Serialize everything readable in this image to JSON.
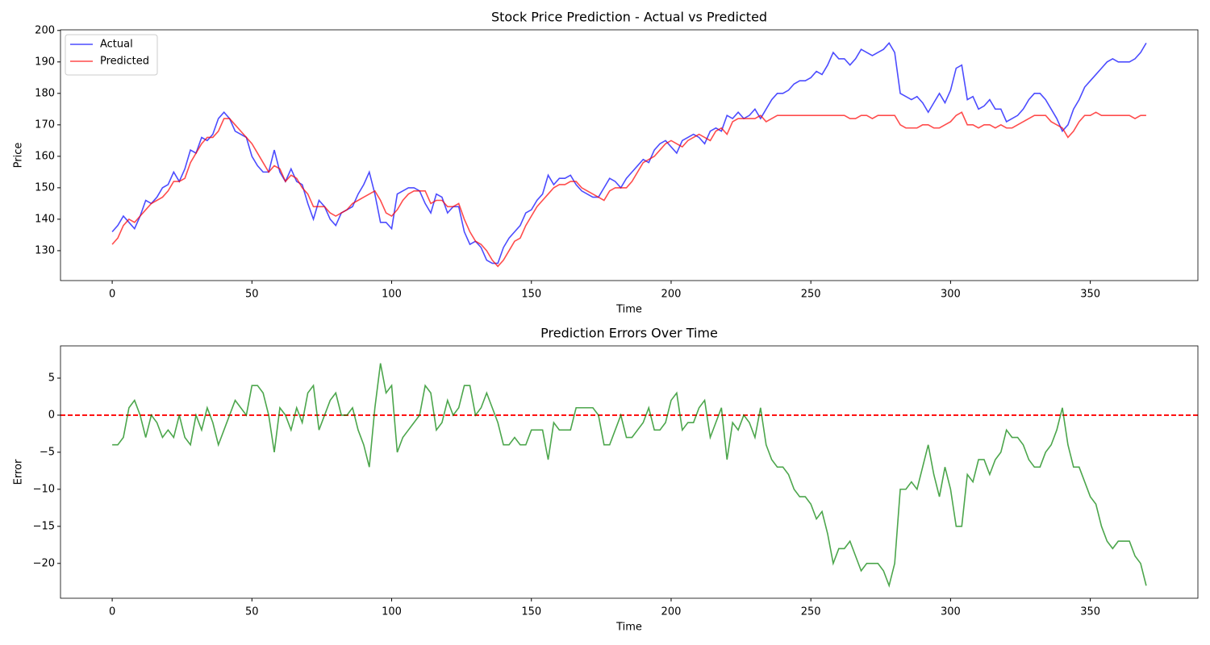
{
  "chart_data": [
    {
      "type": "line",
      "title": "Stock Price Prediction - Actual vs Predicted",
      "xlabel": "Time",
      "ylabel": "Price",
      "x": [
        0,
        2,
        4,
        6,
        8,
        10,
        12,
        14,
        16,
        18,
        20,
        22,
        24,
        26,
        28,
        30,
        32,
        34,
        36,
        38,
        40,
        42,
        44,
        46,
        48,
        50,
        52,
        54,
        56,
        58,
        60,
        62,
        64,
        66,
        68,
        70,
        72,
        74,
        76,
        78,
        80,
        82,
        84,
        86,
        88,
        90,
        92,
        94,
        96,
        98,
        100,
        102,
        104,
        106,
        108,
        110,
        112,
        114,
        116,
        118,
        120,
        122,
        124,
        126,
        128,
        130,
        132,
        134,
        136,
        138,
        140,
        142,
        144,
        146,
        148,
        150,
        152,
        154,
        156,
        158,
        160,
        162,
        164,
        166,
        168,
        170,
        172,
        174,
        176,
        178,
        180,
        182,
        184,
        186,
        188,
        190,
        192,
        194,
        196,
        198,
        200,
        202,
        204,
        206,
        208,
        210,
        212,
        214,
        216,
        218,
        220,
        222,
        224,
        226,
        228,
        230,
        232,
        234,
        236,
        238,
        240,
        242,
        244,
        246,
        248,
        250,
        252,
        254,
        256,
        258,
        260,
        262,
        264,
        266,
        268,
        270,
        272,
        274,
        276,
        278,
        280,
        282,
        284,
        286,
        288,
        290,
        292,
        294,
        296,
        298,
        300,
        302,
        304,
        306,
        308,
        310,
        312,
        314,
        316,
        318,
        320,
        322,
        324,
        326,
        328,
        330,
        332,
        334,
        336,
        338,
        340,
        342,
        344,
        346,
        348,
        350,
        352,
        354,
        356,
        358,
        360,
        362,
        364,
        366,
        368,
        370
      ],
      "series": [
        {
          "name": "Actual",
          "color": "#0000ff",
          "opacity": 0.7,
          "values": [
            136,
            138,
            141,
            139,
            137,
            141,
            146,
            145,
            147,
            150,
            151,
            155,
            152,
            156,
            162,
            161,
            166,
            165,
            167,
            172,
            174,
            172,
            168,
            167,
            166,
            160,
            157,
            155,
            155,
            162,
            155,
            152,
            156,
            152,
            151,
            145,
            140,
            146,
            144,
            140,
            138,
            142,
            143,
            144,
            148,
            151,
            155,
            148,
            139,
            139,
            137,
            148,
            149,
            150,
            150,
            149,
            145,
            142,
            148,
            147,
            142,
            144,
            144,
            136,
            132,
            133,
            131,
            127,
            126,
            126,
            131,
            134,
            136,
            138,
            142,
            143,
            146,
            148,
            154,
            151,
            153,
            153,
            154,
            151,
            149,
            148,
            147,
            147,
            150,
            153,
            152,
            150,
            153,
            155,
            157,
            159,
            158,
            162,
            164,
            165,
            163,
            161,
            165,
            166,
            167,
            166,
            164,
            168,
            169,
            168,
            173,
            172,
            174,
            172,
            173,
            175,
            172,
            175,
            178,
            180,
            180,
            181,
            183,
            184,
            184,
            185,
            187,
            186,
            189,
            193,
            191,
            191,
            189,
            191,
            194,
            193,
            192,
            193,
            194,
            196,
            193,
            180,
            179,
            178,
            179,
            177,
            174,
            177,
            180,
            177,
            181,
            188,
            189,
            178,
            179,
            175,
            176,
            178,
            175,
            175,
            171,
            172,
            173,
            175,
            178,
            180,
            180,
            178,
            175,
            172,
            168,
            170,
            175,
            178,
            182,
            184,
            186,
            188,
            190,
            191,
            190,
            190,
            190,
            191,
            193,
            196
          ]
        },
        {
          "name": "Predicted",
          "color": "#ff0000",
          "opacity": 0.7,
          "values": [
            132,
            134,
            138,
            140,
            139,
            141,
            143,
            145,
            146,
            147,
            149,
            152,
            152,
            153,
            158,
            161,
            164,
            166,
            166,
            168,
            172,
            172,
            170,
            168,
            166,
            164,
            161,
            158,
            155,
            157,
            156,
            152,
            154,
            153,
            150,
            148,
            144,
            144,
            144,
            142,
            141,
            142,
            143,
            145,
            146,
            147,
            148,
            149,
            146,
            142,
            141,
            143,
            146,
            148,
            149,
            149,
            149,
            145,
            146,
            146,
            144,
            144,
            145,
            140,
            136,
            133,
            132,
            130,
            127,
            125,
            127,
            130,
            133,
            134,
            138,
            141,
            144,
            146,
            148,
            150,
            151,
            151,
            152,
            152,
            150,
            149,
            148,
            147,
            146,
            149,
            150,
            150,
            150,
            152,
            155,
            158,
            159,
            160,
            162,
            164,
            165,
            164,
            163,
            165,
            166,
            167,
            166,
            165,
            168,
            169,
            167,
            171,
            172,
            172,
            172,
            172,
            173,
            171,
            172,
            173,
            173,
            173,
            173,
            173,
            173,
            173,
            173,
            173,
            173,
            173,
            173,
            173,
            172,
            172,
            173,
            173,
            172,
            173,
            173,
            173,
            173,
            170,
            169,
            169,
            169,
            170,
            170,
            169,
            169,
            170,
            171,
            173,
            174,
            170,
            170,
            169,
            170,
            170,
            169,
            170,
            169,
            169,
            170,
            171,
            172,
            173,
            173,
            173,
            171,
            170,
            169,
            166,
            168,
            171,
            173,
            173,
            174,
            173,
            173,
            173,
            173,
            173,
            173,
            172,
            173,
            173
          ]
        }
      ],
      "xlim": [
        -18.5,
        388.5
      ],
      "xticks": [
        0,
        50,
        100,
        150,
        200,
        250,
        300,
        350
      ],
      "ylim": [
        120.5,
        200.2
      ],
      "yticks": [
        130,
        140,
        150,
        160,
        170,
        180,
        190,
        200
      ],
      "legend": "upper left",
      "grid": false
    },
    {
      "type": "line",
      "title": "Prediction Errors Over Time",
      "xlabel": "Time",
      "ylabel": "Error",
      "x": [
        0,
        2,
        4,
        6,
        8,
        10,
        12,
        14,
        16,
        18,
        20,
        22,
        24,
        26,
        28,
        30,
        32,
        34,
        36,
        38,
        40,
        42,
        44,
        46,
        48,
        50,
        52,
        54,
        56,
        58,
        60,
        62,
        64,
        66,
        68,
        70,
        72,
        74,
        76,
        78,
        80,
        82,
        84,
        86,
        88,
        90,
        92,
        94,
        96,
        98,
        100,
        102,
        104,
        106,
        108,
        110,
        112,
        114,
        116,
        118,
        120,
        122,
        124,
        126,
        128,
        130,
        132,
        134,
        136,
        138,
        140,
        142,
        144,
        146,
        148,
        150,
        152,
        154,
        156,
        158,
        160,
        162,
        164,
        166,
        168,
        170,
        172,
        174,
        176,
        178,
        180,
        182,
        184,
        186,
        188,
        190,
        192,
        194,
        196,
        198,
        200,
        202,
        204,
        206,
        208,
        210,
        212,
        214,
        216,
        218,
        220,
        222,
        224,
        226,
        228,
        230,
        232,
        234,
        236,
        238,
        240,
        242,
        244,
        246,
        248,
        250,
        252,
        254,
        256,
        258,
        260,
        262,
        264,
        266,
        268,
        270,
        272,
        274,
        276,
        278,
        280,
        282,
        284,
        286,
        288,
        290,
        292,
        294,
        296,
        298,
        300,
        302,
        304,
        306,
        308,
        310,
        312,
        314,
        316,
        318,
        320,
        322,
        324,
        326,
        328,
        330,
        332,
        334,
        336,
        338,
        340,
        342,
        344,
        346,
        348,
        350,
        352,
        354,
        356,
        358,
        360,
        362,
        364,
        366,
        368,
        370
      ],
      "series": [
        {
          "color": "#008000",
          "opacity": 0.7,
          "values": [
            -4,
            -4,
            -3,
            1,
            2,
            0,
            -3,
            0,
            -1,
            -3,
            -2,
            -3,
            0,
            -3,
            -4,
            0,
            -2,
            1,
            -1,
            -4,
            -2,
            0,
            2,
            1,
            0,
            4,
            4,
            3,
            0,
            -5,
            1,
            0,
            -2,
            1,
            -1,
            3,
            4,
            -2,
            0,
            2,
            3,
            0,
            0,
            1,
            -2,
            -4,
            -7,
            1,
            7,
            3,
            4,
            -5,
            -3,
            -2,
            -1,
            0,
            4,
            3,
            -2,
            -1,
            2,
            0,
            1,
            4,
            4,
            0,
            1,
            3,
            1,
            -1,
            -4,
            -4,
            -3,
            -4,
            -4,
            -2,
            -2,
            -2,
            -6,
            -1,
            -2,
            -2,
            -2,
            1,
            1,
            1,
            1,
            0,
            -4,
            -4,
            -2,
            0,
            -3,
            -3,
            -2,
            -1,
            1,
            -2,
            -2,
            -1,
            2,
            3,
            -2,
            -1,
            -1,
            1,
            2,
            -3,
            -1,
            1,
            -6,
            -1,
            -2,
            0,
            -1,
            -3,
            1,
            -4,
            -6,
            -7,
            -7,
            -8,
            -10,
            -11,
            -11,
            -12,
            -14,
            -13,
            -16,
            -20,
            -18,
            -18,
            -17,
            -19,
            -21,
            -20,
            -20,
            -20,
            -21,
            -23,
            -20,
            -10,
            -10,
            -9,
            -10,
            -7,
            -4,
            -8,
            -11,
            -7,
            -10,
            -15,
            -15,
            -8,
            -9,
            -6,
            -6,
            -8,
            -6,
            -5,
            -2,
            -3,
            -3,
            -4,
            -6,
            -7,
            -7,
            -5,
            -4,
            -2,
            1,
            -4,
            -7,
            -7,
            -9,
            -11,
            -12,
            -15,
            -17,
            -18,
            -17,
            -17,
            -17,
            -19,
            -20,
            -23
          ]
        }
      ],
      "reference_line": {
        "value": 0,
        "color": "#ff0000"
      },
      "xlim": [
        -18.5,
        388.5
      ],
      "xticks": [
        0,
        50,
        100,
        150,
        200,
        250,
        300,
        350
      ],
      "ylim": [
        -24.7,
        9.35
      ],
      "yticks": [
        {
          "value": -20,
          "label": "−20"
        },
        {
          "value": -15,
          "label": "−15"
        },
        {
          "value": -10,
          "label": "−10"
        },
        {
          "value": -5,
          "label": "−5"
        },
        0,
        5
      ],
      "grid": false
    }
  ]
}
